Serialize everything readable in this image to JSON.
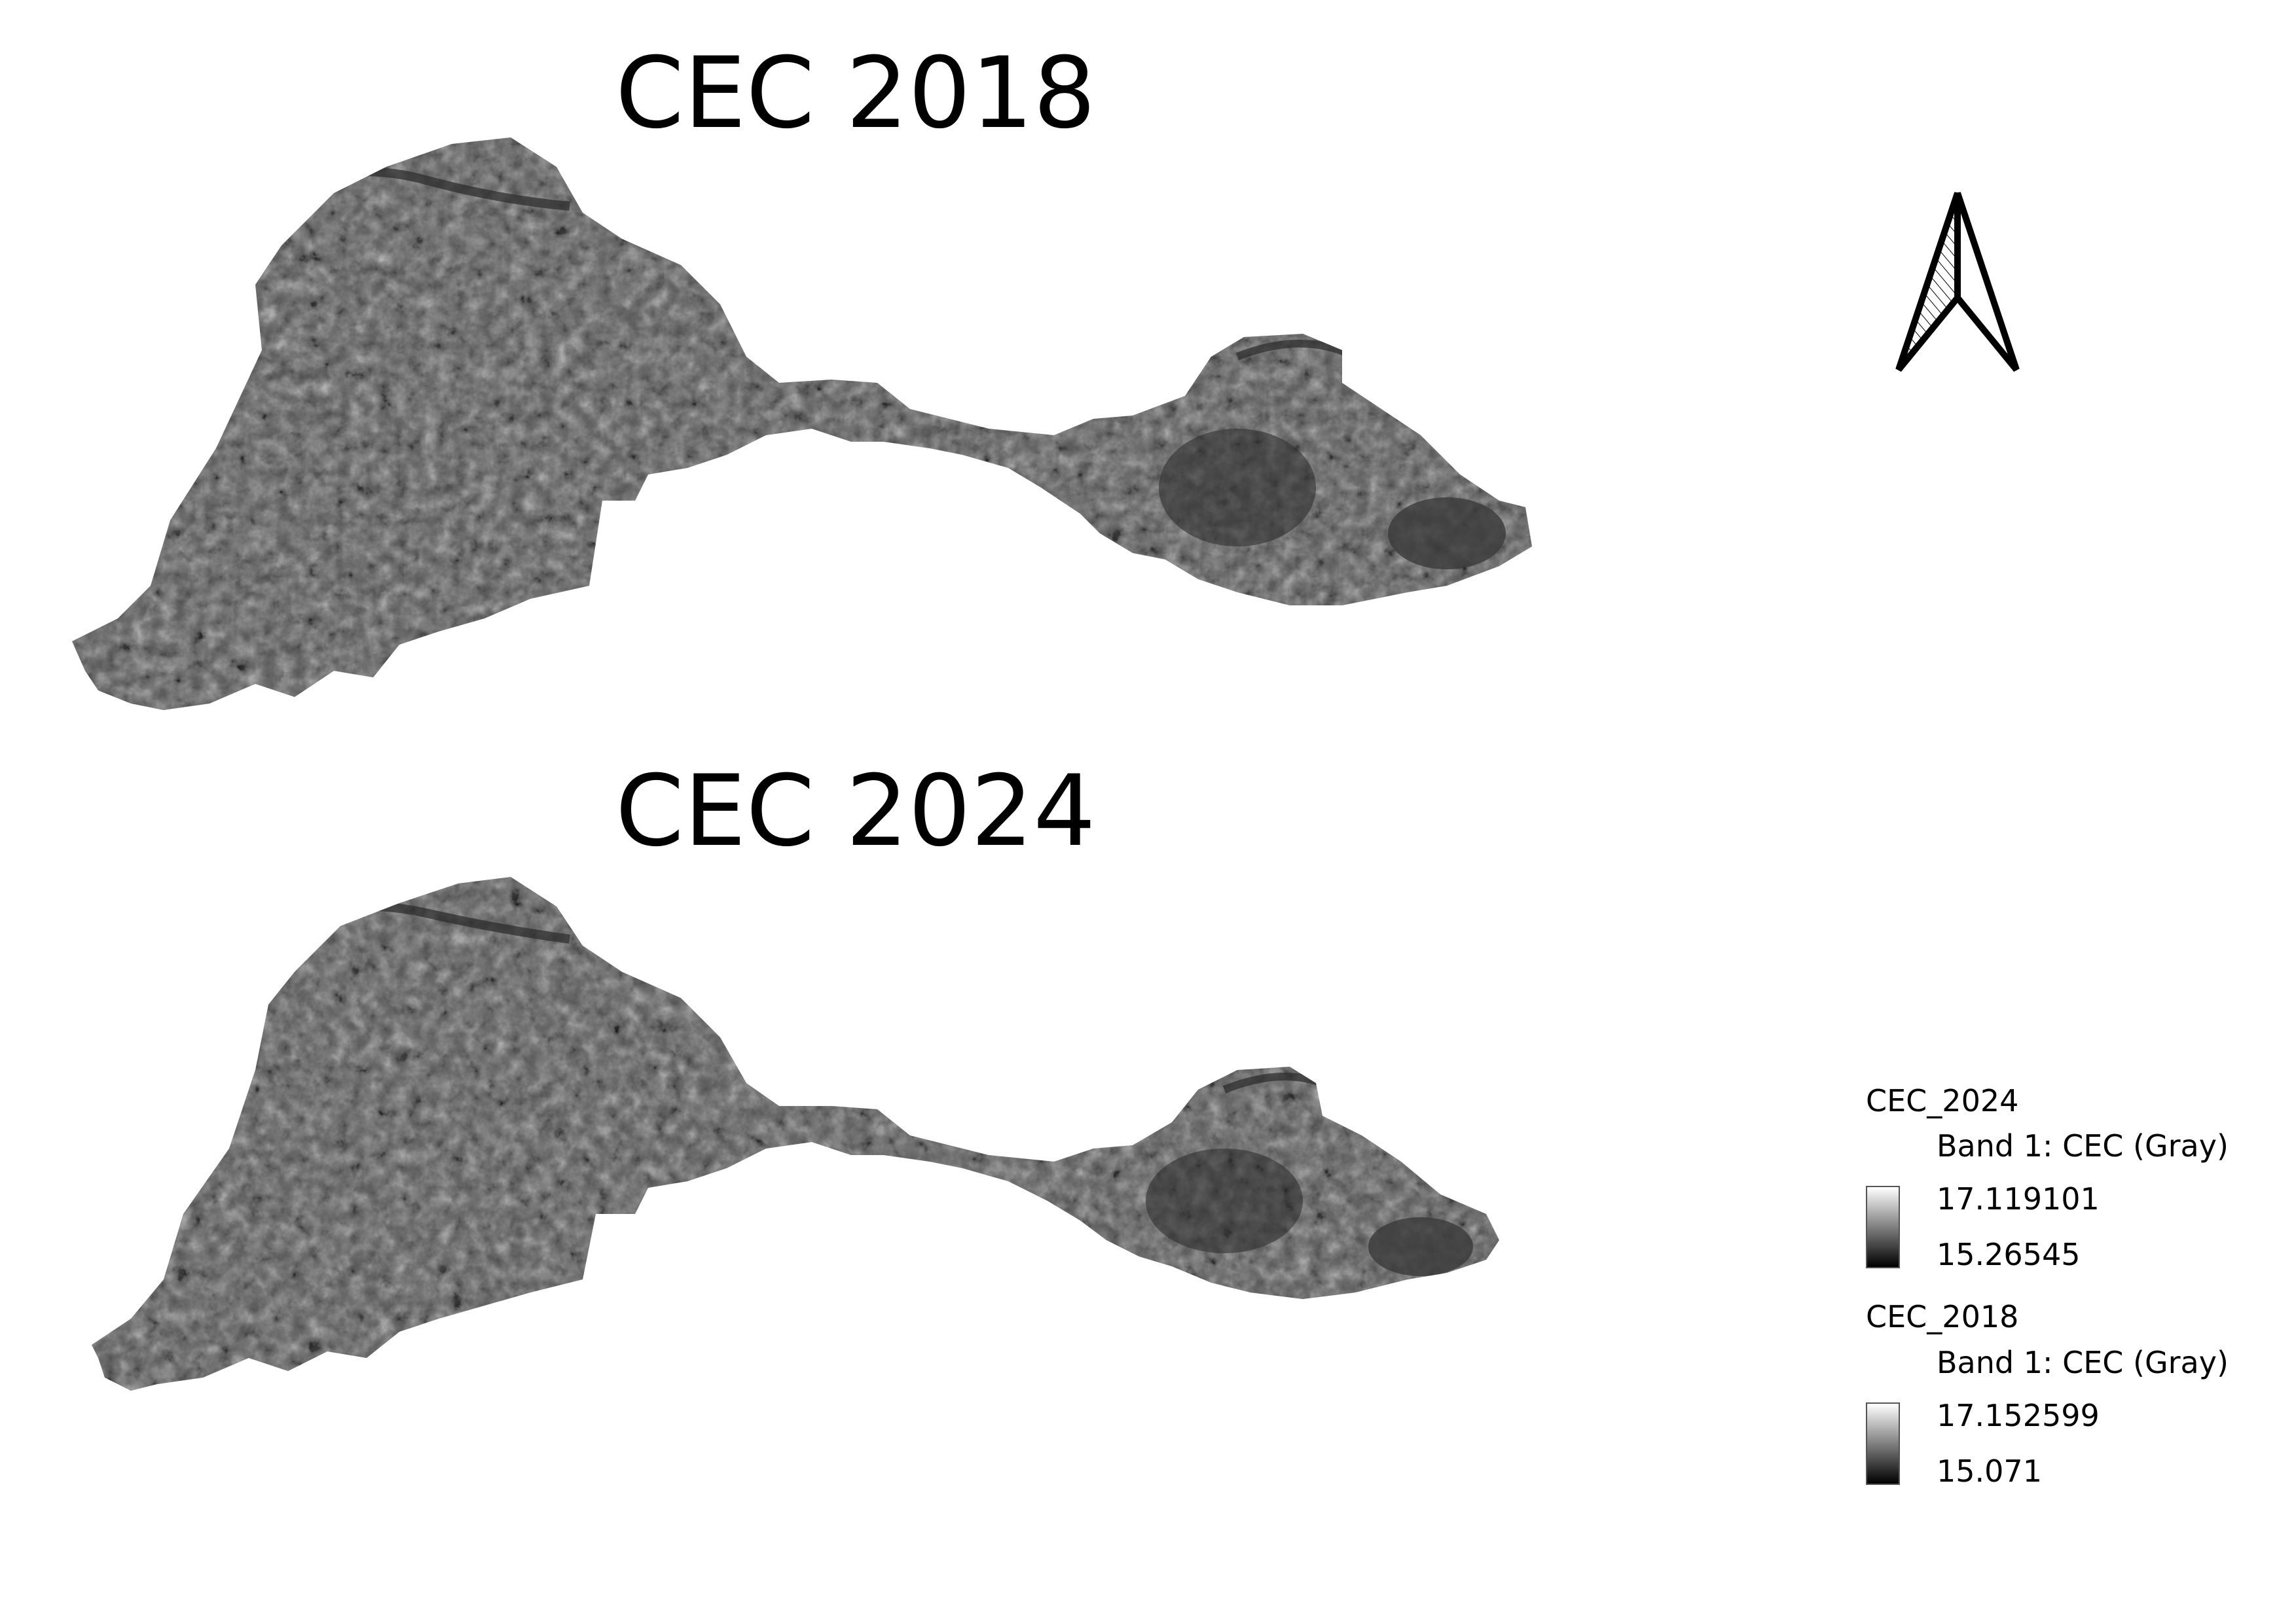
{
  "maps": [
    {
      "title": "CEC 2018"
    },
    {
      "title": "CEC 2024"
    }
  ],
  "north_arrow": {
    "icon": "north-arrow-icon"
  },
  "legend": {
    "groups": [
      {
        "layer": "CEC_2024",
        "band": "Band 1: CEC (Gray)",
        "max": "17.119101",
        "min": "15.26545"
      },
      {
        "layer": "CEC_2018",
        "band": "Band 1: CEC (Gray)",
        "max": "17.152599",
        "min": "15.071"
      }
    ]
  },
  "colors": {
    "ramp_high": "#ffffff",
    "ramp_low": "#000000",
    "map_fill": "#5a5a5a"
  }
}
